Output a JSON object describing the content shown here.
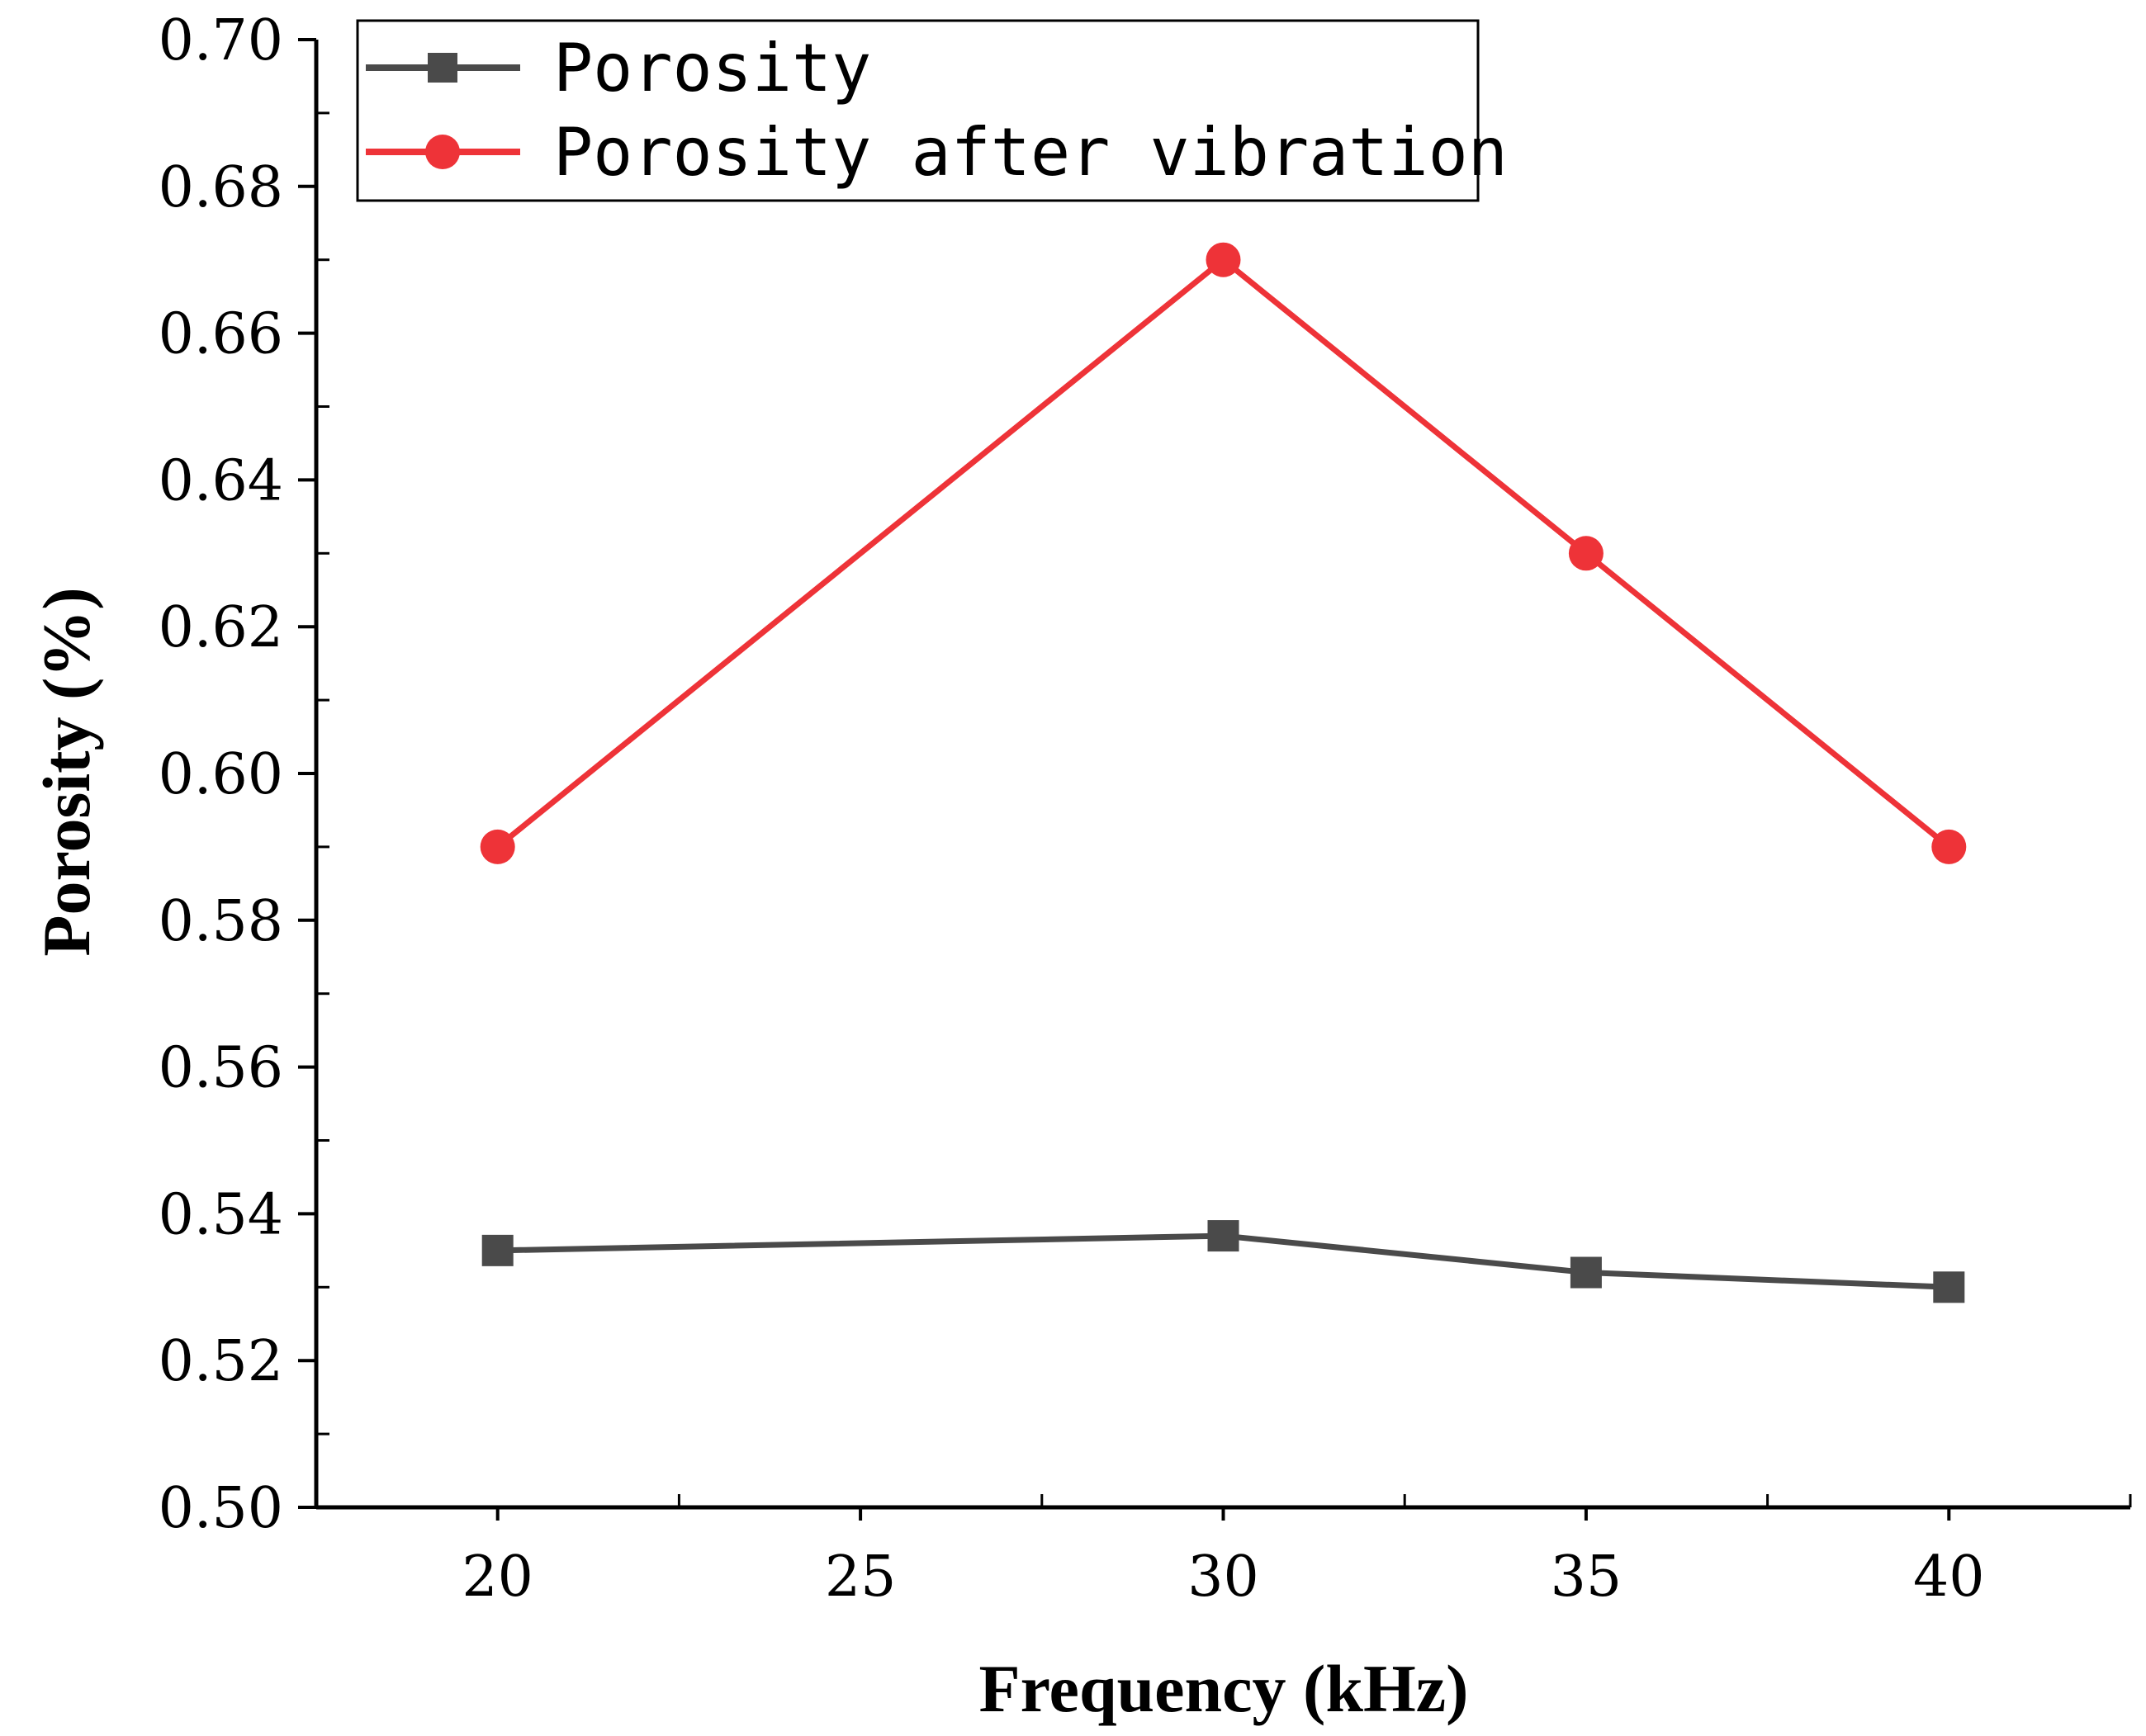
{
  "chart_data": {
    "type": "line",
    "title": "",
    "xlabel": "Frequency (kHz)",
    "ylabel": "Porosity (%)",
    "x": [
      20,
      30,
      35,
      40
    ],
    "xlim": [
      17.5,
      42.5
    ],
    "ylim": [
      0.5,
      0.7
    ],
    "xticks": [
      20,
      25,
      30,
      35,
      40
    ],
    "xtick_labels": [
      "20",
      "25",
      "30",
      "35",
      "40"
    ],
    "yticks": [
      0.5,
      0.52,
      0.54,
      0.56,
      0.58,
      0.6,
      0.62,
      0.64,
      0.66,
      0.68,
      0.7
    ],
    "ytick_labels": [
      "0.50",
      "0.52",
      "0.54",
      "0.56",
      "0.58",
      "0.60",
      "0.62",
      "0.64",
      "0.66",
      "0.68",
      "0.70"
    ],
    "grid": false,
    "legend_position": "top-left",
    "series": [
      {
        "name": "Porosity",
        "marker": "square",
        "color": "#4a4a4a",
        "values": [
          0.535,
          0.537,
          0.532,
          0.53
        ]
      },
      {
        "name": "Porosity after vibration",
        "marker": "circle",
        "color": "#ee3338",
        "values": [
          0.59,
          0.67,
          0.63,
          0.59
        ]
      }
    ]
  }
}
